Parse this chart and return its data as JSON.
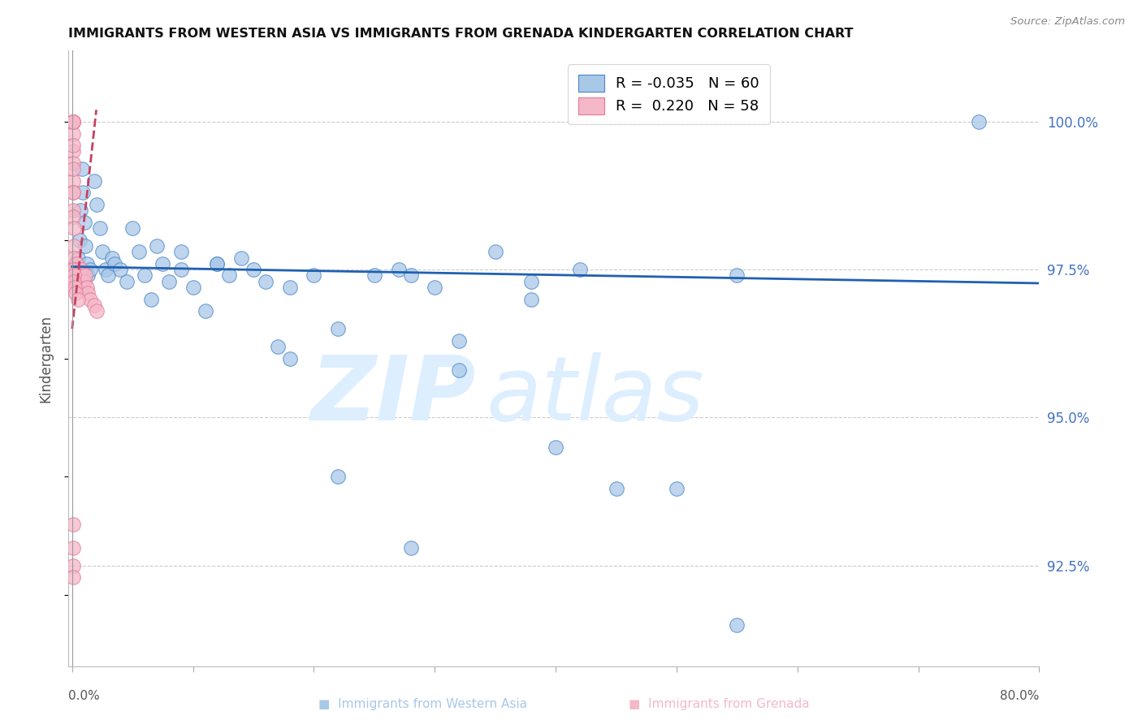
{
  "title": "IMMIGRANTS FROM WESTERN ASIA VS IMMIGRANTS FROM GRENADA KINDERGARTEN CORRELATION CHART",
  "source": "Source: ZipAtlas.com",
  "ylabel": "Kindergarten",
  "right_yticks": [
    100.0,
    97.5,
    95.0,
    92.5
  ],
  "right_ytick_labels": [
    "100.0%",
    "97.5%",
    "95.0%",
    "92.5%"
  ],
  "legend_blue_r": "-0.035",
  "legend_blue_n": "60",
  "legend_pink_r": "0.220",
  "legend_pink_n": "58",
  "blue_color": "#a8c8e8",
  "pink_color": "#f4b8c8",
  "blue_edge_color": "#4a86c8",
  "pink_edge_color": "#e87898",
  "blue_line_color": "#2060b0",
  "pink_line_color": "#c84060",
  "watermark_zip": "ZIP",
  "watermark_atlas": "atlas",
  "watermark_color": "#ddeeff",
  "ylim_min": 90.8,
  "ylim_max": 101.2,
  "xlim_min": -0.3,
  "xlim_max": 80.0,
  "blue_x": [
    0.5,
    0.6,
    0.7,
    0.8,
    0.9,
    1.0,
    1.1,
    1.2,
    1.3,
    1.5,
    1.8,
    2.0,
    2.3,
    2.5,
    2.8,
    3.0,
    3.3,
    3.5,
    4.0,
    4.5,
    5.0,
    5.5,
    6.0,
    6.5,
    7.0,
    7.5,
    8.0,
    9.0,
    10.0,
    11.0,
    12.0,
    13.0,
    14.0,
    15.0,
    16.0,
    17.0,
    18.0,
    20.0,
    22.0,
    25.0,
    27.0,
    30.0,
    32.0,
    35.0,
    38.0,
    40.0,
    42.0,
    45.0,
    50.0,
    55.0,
    28.0,
    32.0,
    38.0,
    9.0,
    12.0,
    18.0,
    22.0,
    28.0,
    55.0,
    75.0
  ],
  "blue_y": [
    97.7,
    98.0,
    98.5,
    99.2,
    98.8,
    98.3,
    97.9,
    97.6,
    97.4,
    97.5,
    99.0,
    98.6,
    98.2,
    97.8,
    97.5,
    97.4,
    97.7,
    97.6,
    97.5,
    97.3,
    98.2,
    97.8,
    97.4,
    97.0,
    97.9,
    97.6,
    97.3,
    97.5,
    97.2,
    96.8,
    97.6,
    97.4,
    97.7,
    97.5,
    97.3,
    96.2,
    96.0,
    97.4,
    96.5,
    97.4,
    97.5,
    97.2,
    95.8,
    97.8,
    97.3,
    94.5,
    97.5,
    93.8,
    93.8,
    97.4,
    97.4,
    96.3,
    97.0,
    97.8,
    97.6,
    97.2,
    94.0,
    92.8,
    91.5,
    100.0
  ],
  "pink_x": [
    0.05,
    0.05,
    0.05,
    0.05,
    0.05,
    0.08,
    0.08,
    0.08,
    0.1,
    0.1,
    0.1,
    0.1,
    0.1,
    0.1,
    0.12,
    0.12,
    0.15,
    0.15,
    0.15,
    0.15,
    0.18,
    0.2,
    0.2,
    0.22,
    0.25,
    0.28,
    0.3,
    0.3,
    0.35,
    0.38,
    0.4,
    0.42,
    0.45,
    0.5,
    0.55,
    0.6,
    0.65,
    0.7,
    0.75,
    0.8,
    0.9,
    1.0,
    1.1,
    1.2,
    1.3,
    1.5,
    1.8,
    2.0,
    0.05,
    0.05,
    0.05,
    0.08,
    0.1,
    0.12,
    0.15,
    0.2,
    0.3,
    0.5
  ],
  "pink_y": [
    100.0,
    100.0,
    99.8,
    99.5,
    99.3,
    99.0,
    98.8,
    98.5,
    100.0,
    100.0,
    99.6,
    99.2,
    98.8,
    98.4,
    98.2,
    97.9,
    97.7,
    97.5,
    97.4,
    97.3,
    97.5,
    97.4,
    97.3,
    97.5,
    97.4,
    97.3,
    97.5,
    97.4,
    97.6,
    97.5,
    97.4,
    97.3,
    97.2,
    97.4,
    97.3,
    97.2,
    97.3,
    97.4,
    97.5,
    97.3,
    97.2,
    97.3,
    97.4,
    97.2,
    97.1,
    97.0,
    96.9,
    96.8,
    92.5,
    92.3,
    92.8,
    93.2,
    97.5,
    97.4,
    97.3,
    97.2,
    97.1,
    97.0
  ],
  "blue_reg_x0": 0.0,
  "blue_reg_x1": 80.0,
  "blue_reg_y0": 97.55,
  "blue_reg_y1": 97.27,
  "pink_reg_x0": 0.0,
  "pink_reg_x1": 2.0,
  "pink_reg_y0": 96.5,
  "pink_reg_y1": 100.2
}
